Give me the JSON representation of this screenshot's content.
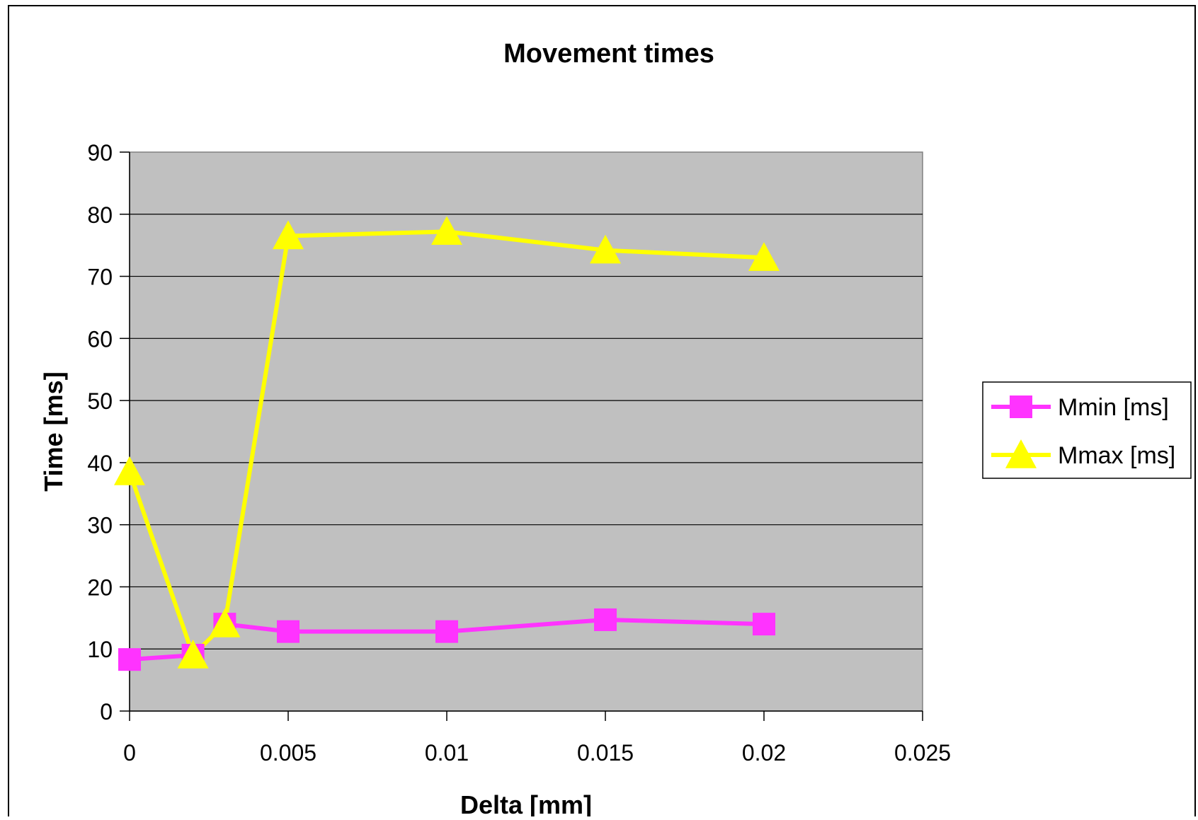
{
  "chart_data": {
    "type": "scatter",
    "title": "Movement times",
    "xlabel": "Delta [mm]",
    "ylabel": "Time [ms]",
    "xlim": [
      0,
      0.025
    ],
    "ylim": [
      0,
      90
    ],
    "xticks": [
      "0",
      "0.005",
      "0.01",
      "0.015",
      "0.02",
      "0.025"
    ],
    "yticks": [
      "0",
      "10",
      "20",
      "30",
      "40",
      "50",
      "60",
      "70",
      "80",
      "90"
    ],
    "grid": "horizontal",
    "legend_position": "right",
    "plot_background": "#c0c0c0",
    "series": [
      {
        "name": "Mmin [ms]",
        "color": "#ff33ff",
        "marker": "square",
        "points": [
          {
            "x": 0,
            "y": 8.3
          },
          {
            "x": 0.002,
            "y": 9
          },
          {
            "x": 0.003,
            "y": 14
          },
          {
            "x": 0.005,
            "y": 12.8
          },
          {
            "x": 0.01,
            "y": 12.8
          },
          {
            "x": 0.015,
            "y": 14.7
          },
          {
            "x": 0.02,
            "y": 14
          }
        ]
      },
      {
        "name": "Mmax [ms]",
        "color": "#ffff00",
        "marker": "triangle",
        "points": [
          {
            "x": 0,
            "y": 38.5
          },
          {
            "x": 0.002,
            "y": 9
          },
          {
            "x": 0.003,
            "y": 14
          },
          {
            "x": 0.005,
            "y": 76.5
          },
          {
            "x": 0.01,
            "y": 77.2
          },
          {
            "x": 0.015,
            "y": 74.2
          },
          {
            "x": 0.02,
            "y": 73
          }
        ]
      }
    ]
  }
}
